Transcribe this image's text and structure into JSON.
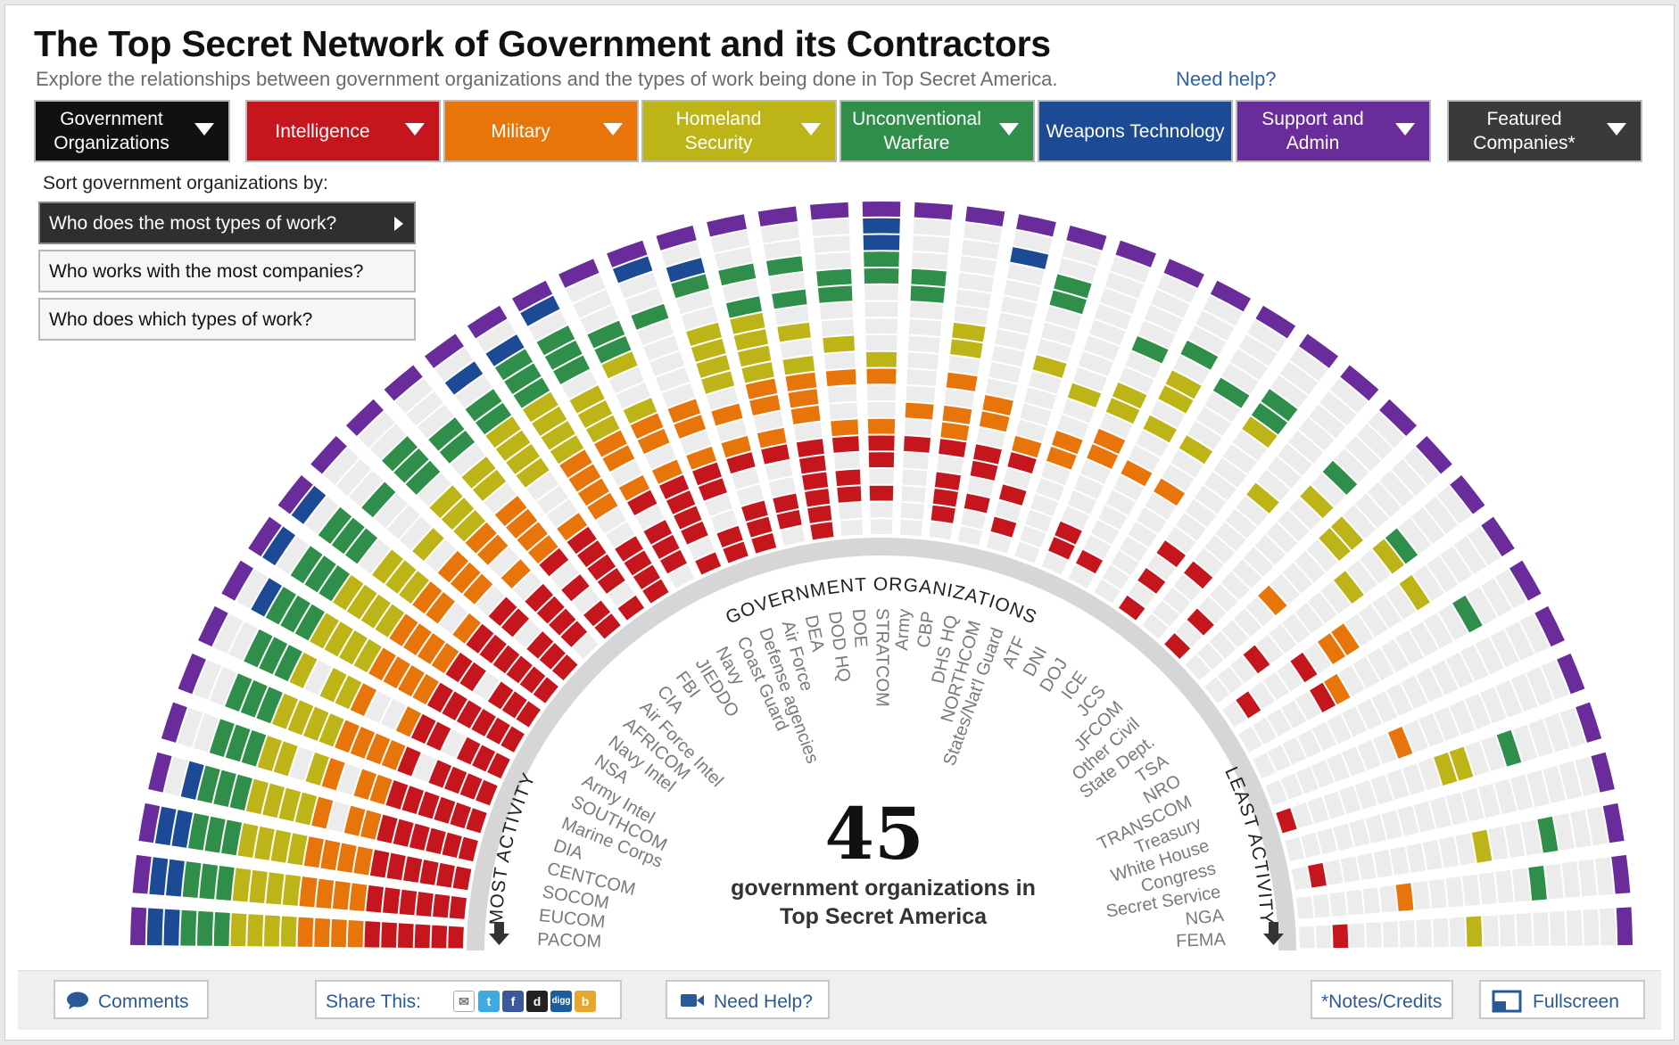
{
  "header": {
    "title": "The Top Secret Network of Government and its Contractors",
    "subtitle": "Explore the relationships between government organizations and the types of work being done in Top Secret America.",
    "help_link": "Need help?"
  },
  "tabs": [
    {
      "label": "Government Organizations",
      "color": "#111111",
      "has_dropdown": true
    },
    {
      "label": "Intelligence",
      "color": "#c4161c",
      "has_dropdown": true
    },
    {
      "label": "Military",
      "color": "#e8750a",
      "has_dropdown": true
    },
    {
      "label": "Homeland Security",
      "color": "#bdb517",
      "has_dropdown": true
    },
    {
      "label": "Unconventional Warfare",
      "color": "#2f8f4a",
      "has_dropdown": true
    },
    {
      "label": "Weapons Technology",
      "color": "#1d4a94",
      "has_dropdown": false
    },
    {
      "label": "Support and Admin",
      "color": "#6a2c9a",
      "has_dropdown": true
    },
    {
      "label": "Featured Companies*",
      "color": "#3a3a3a",
      "has_dropdown": true
    }
  ],
  "sort": {
    "label": "Sort government organizations by:",
    "options": [
      {
        "label": "Who does the most types of work?",
        "active": true
      },
      {
        "label": "Who works with the most companies?",
        "active": false
      },
      {
        "label": "Who does which types of work?",
        "active": false
      }
    ]
  },
  "diagram": {
    "ring_label": "GOVERNMENT ORGANIZATIONS",
    "most_label": "MOST ACTIVITY",
    "least_label": "LEAST ACTIVITY",
    "count": "45",
    "caption_line1": "government organizations in",
    "caption_line2": "Top Secret America",
    "organizations": [
      "PACOM",
      "EUCOM",
      "SOCOM",
      "CENTCOM",
      "DIA",
      "Marine Corps",
      "SOUTHCOM",
      "Army Intel",
      "NSA",
      "Navy Intel",
      "AFRICOM",
      "Air Force Intel",
      "CIA",
      "FBI",
      "JIEDDO",
      "Navy",
      "Coast Guard",
      "Defense agencies",
      "Air Force",
      "DEA",
      "DOD HQ",
      "DOE",
      "STRATCOM",
      "Army",
      "CBP",
      "DHS HQ",
      "NORTHCOM",
      "States/Nat'l Guard",
      "ATF",
      "DNI",
      "DOJ",
      "ICE",
      "JCS",
      "JFCOM",
      "Other Civil",
      "State Dept.",
      "TSA",
      "NRO",
      "TRANSCOM",
      "Treasury",
      "White House",
      "Congress",
      "Secret Service",
      "NGA",
      "FEMA"
    ],
    "category_colors": {
      "intelligence": "#c4161c",
      "military": "#e8750a",
      "homeland": "#bdb517",
      "unconventional": "#2f8f4a",
      "weapons": "#1d4a94",
      "support": "#6a2c9a",
      "empty": "#ececec"
    }
  },
  "footer": {
    "comments": "Comments",
    "share_label": "Share This:",
    "need_help": "Need Help?",
    "notes": "*Notes/Credits",
    "fullscreen": "Fullscreen"
  }
}
